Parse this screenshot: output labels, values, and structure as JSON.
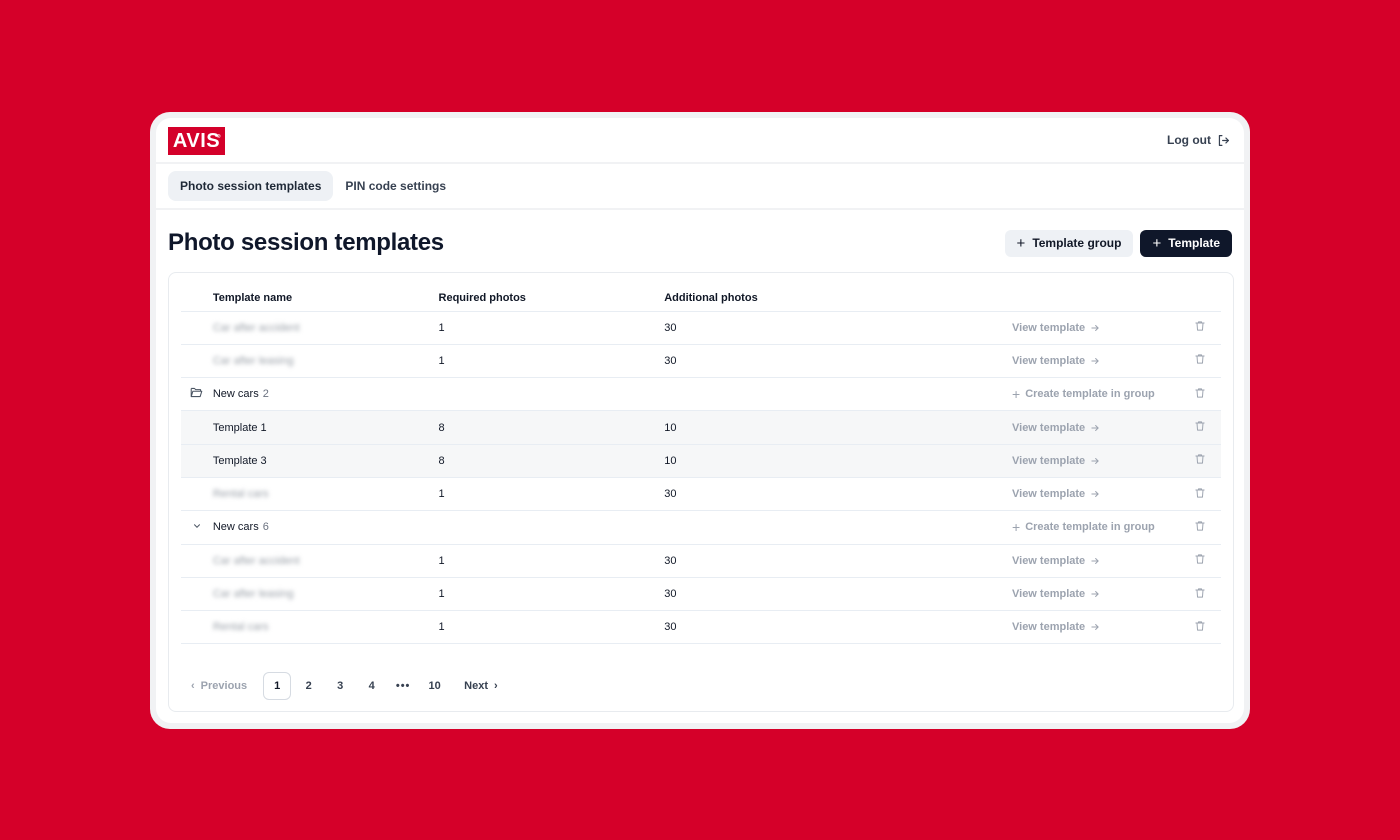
{
  "brand": {
    "logo_text": "AVIS",
    "logo_mark": "®",
    "background": "#d50029"
  },
  "topbar": {
    "logout_label": "Log out"
  },
  "tabs": [
    {
      "label": "Photo session templates",
      "active": true
    },
    {
      "label": "PIN code settings",
      "active": false
    }
  ],
  "page": {
    "title": "Photo session templates",
    "buttons": {
      "template_group": "Template group",
      "template": "Template"
    }
  },
  "table": {
    "columns": [
      "Template name",
      "Required photos",
      "Additional photos"
    ],
    "rows": [
      {
        "type": "template",
        "name": "Car after accident",
        "blurred": true,
        "required": "1",
        "additional": "30",
        "action": "View template"
      },
      {
        "type": "template",
        "name": "Car after leasing",
        "blurred": true,
        "required": "1",
        "additional": "30",
        "action": "View template"
      },
      {
        "type": "group",
        "name": "New cars",
        "count": "2",
        "icon": "folder-open",
        "action": "Create template in group"
      },
      {
        "type": "template",
        "name": "Template 1",
        "blurred": false,
        "shaded": true,
        "required": "8",
        "additional": "10",
        "action": "View template"
      },
      {
        "type": "template",
        "name": "Template 3",
        "blurred": false,
        "shaded": true,
        "required": "8",
        "additional": "10",
        "action": "View template"
      },
      {
        "type": "template",
        "name": "Rental cars",
        "blurred": true,
        "required": "1",
        "additional": "30",
        "action": "View template"
      },
      {
        "type": "group",
        "name": "New cars",
        "count": "6",
        "icon": "chevron-down",
        "action": "Create template in group"
      },
      {
        "type": "template",
        "name": "Car after accident",
        "blurred": true,
        "required": "1",
        "additional": "30",
        "action": "View template"
      },
      {
        "type": "template",
        "name": "Car after leasing",
        "blurred": true,
        "required": "1",
        "additional": "30",
        "action": "View template"
      },
      {
        "type": "template",
        "name": "Rental cars",
        "blurred": true,
        "required": "1",
        "additional": "30",
        "action": "View template"
      }
    ]
  },
  "pagination": {
    "previous": "Previous",
    "next": "Next",
    "pages": [
      "1",
      "2",
      "3",
      "4",
      "•••",
      "10"
    ],
    "current": "1"
  }
}
